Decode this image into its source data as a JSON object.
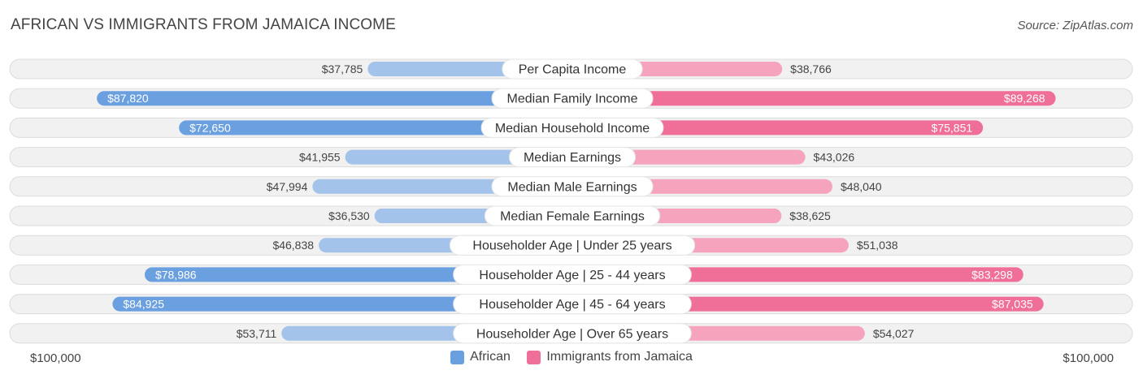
{
  "header": {
    "title": "AFRICAN VS IMMIGRANTS FROM JAMAICA INCOME",
    "source": "Source: ZipAtlas.com"
  },
  "axis": {
    "left_label": "$100,000",
    "right_label": "$100,000"
  },
  "legend": {
    "african": "African",
    "jamaica": "Immigrants from Jamaica"
  },
  "colors": {
    "african_light": "#a4c3ea",
    "african_dark": "#6a9fe0",
    "jamaica_light": "#f6a3bd",
    "jamaica_dark": "#ef6f98",
    "track": "#f1f1f1",
    "track_border": "#dcdcdc"
  },
  "chart_data": {
    "type": "bar",
    "orientation": "horizontal-diverging",
    "title": "AFRICAN VS IMMIGRANTS FROM JAMAICA INCOME",
    "xlim": [
      0,
      100000
    ],
    "categories": [
      "Per Capita Income",
      "Median Family Income",
      "Median Household Income",
      "Median Earnings",
      "Median Male Earnings",
      "Median Female Earnings",
      "Householder Age | Under 25 years",
      "Householder Age | 25 - 44 years",
      "Householder Age | 45 - 64 years",
      "Householder Age | Over 65 years"
    ],
    "series": [
      {
        "name": "African",
        "values": [
          37785,
          87820,
          72650,
          41955,
          47994,
          36530,
          46838,
          78986,
          84925,
          53711
        ],
        "labels": [
          "$37,785",
          "$87,820",
          "$72,650",
          "$41,955",
          "$47,994",
          "$36,530",
          "$46,838",
          "$78,986",
          "$84,925",
          "$53,711"
        ]
      },
      {
        "name": "Immigrants from Jamaica",
        "values": [
          38766,
          89268,
          75851,
          43026,
          48040,
          38625,
          51038,
          83298,
          87035,
          54027
        ],
        "labels": [
          "$38,766",
          "$89,268",
          "$75,851",
          "$43,026",
          "$48,040",
          "$38,625",
          "$51,038",
          "$83,298",
          "$87,035",
          "$54,027"
        ]
      }
    ],
    "inside_label_rows": [
      1,
      2,
      7,
      8
    ],
    "legend_position": "bottom-center"
  }
}
